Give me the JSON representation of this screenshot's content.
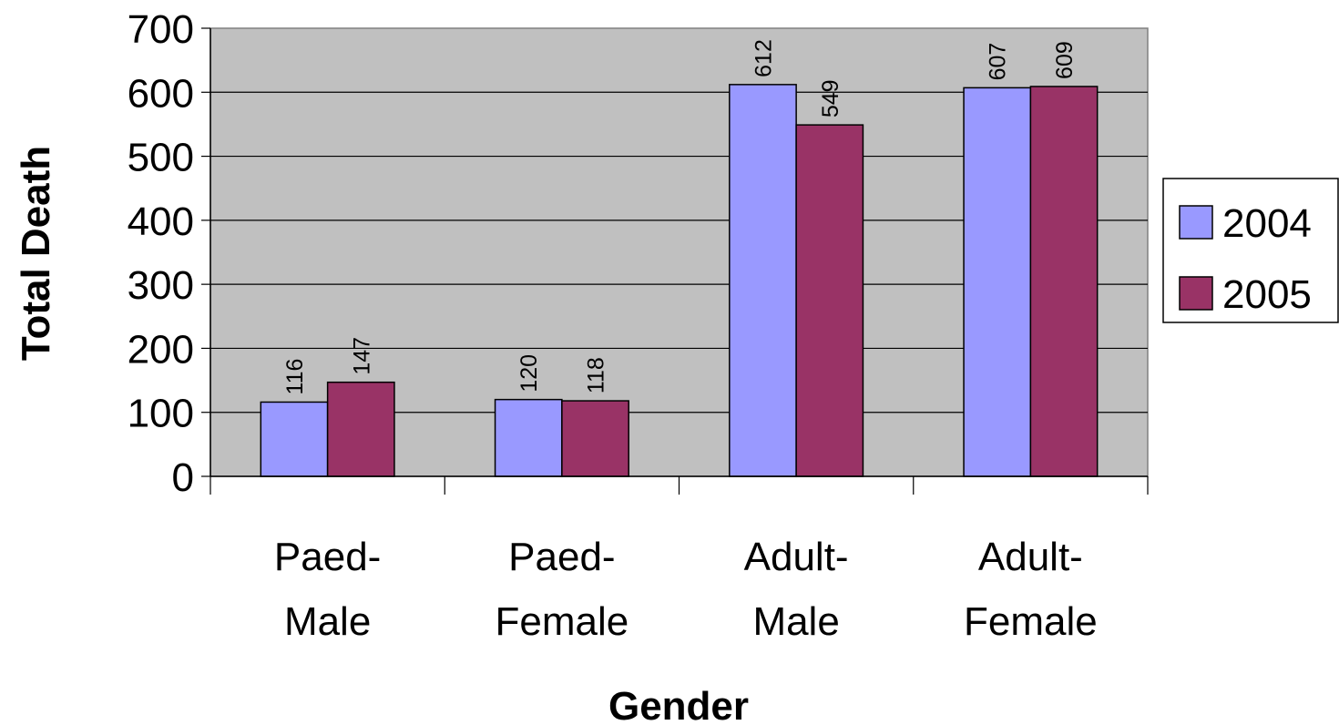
{
  "chart_data": {
    "type": "bar",
    "title": "",
    "xlabel": "Gender",
    "ylabel": "Total Death",
    "categories": [
      [
        "Paed-",
        "Male"
      ],
      [
        "Paed-",
        "Female"
      ],
      [
        "Adult-",
        "Male"
      ],
      [
        "Adult-",
        "Female"
      ]
    ],
    "series": [
      {
        "name": "2004",
        "color": "#9999ff",
        "values": [
          116,
          120,
          612,
          607
        ]
      },
      {
        "name": "2005",
        "color": "#993366",
        "values": [
          147,
          118,
          549,
          609
        ]
      }
    ],
    "ylim": [
      0,
      700
    ],
    "yticks": [
      "0",
      "100",
      "200",
      "300",
      "400",
      "500",
      "600",
      "700"
    ],
    "grid": true,
    "plot_background": "#c0c0c0",
    "legend_position": "right",
    "data_labels": true
  }
}
